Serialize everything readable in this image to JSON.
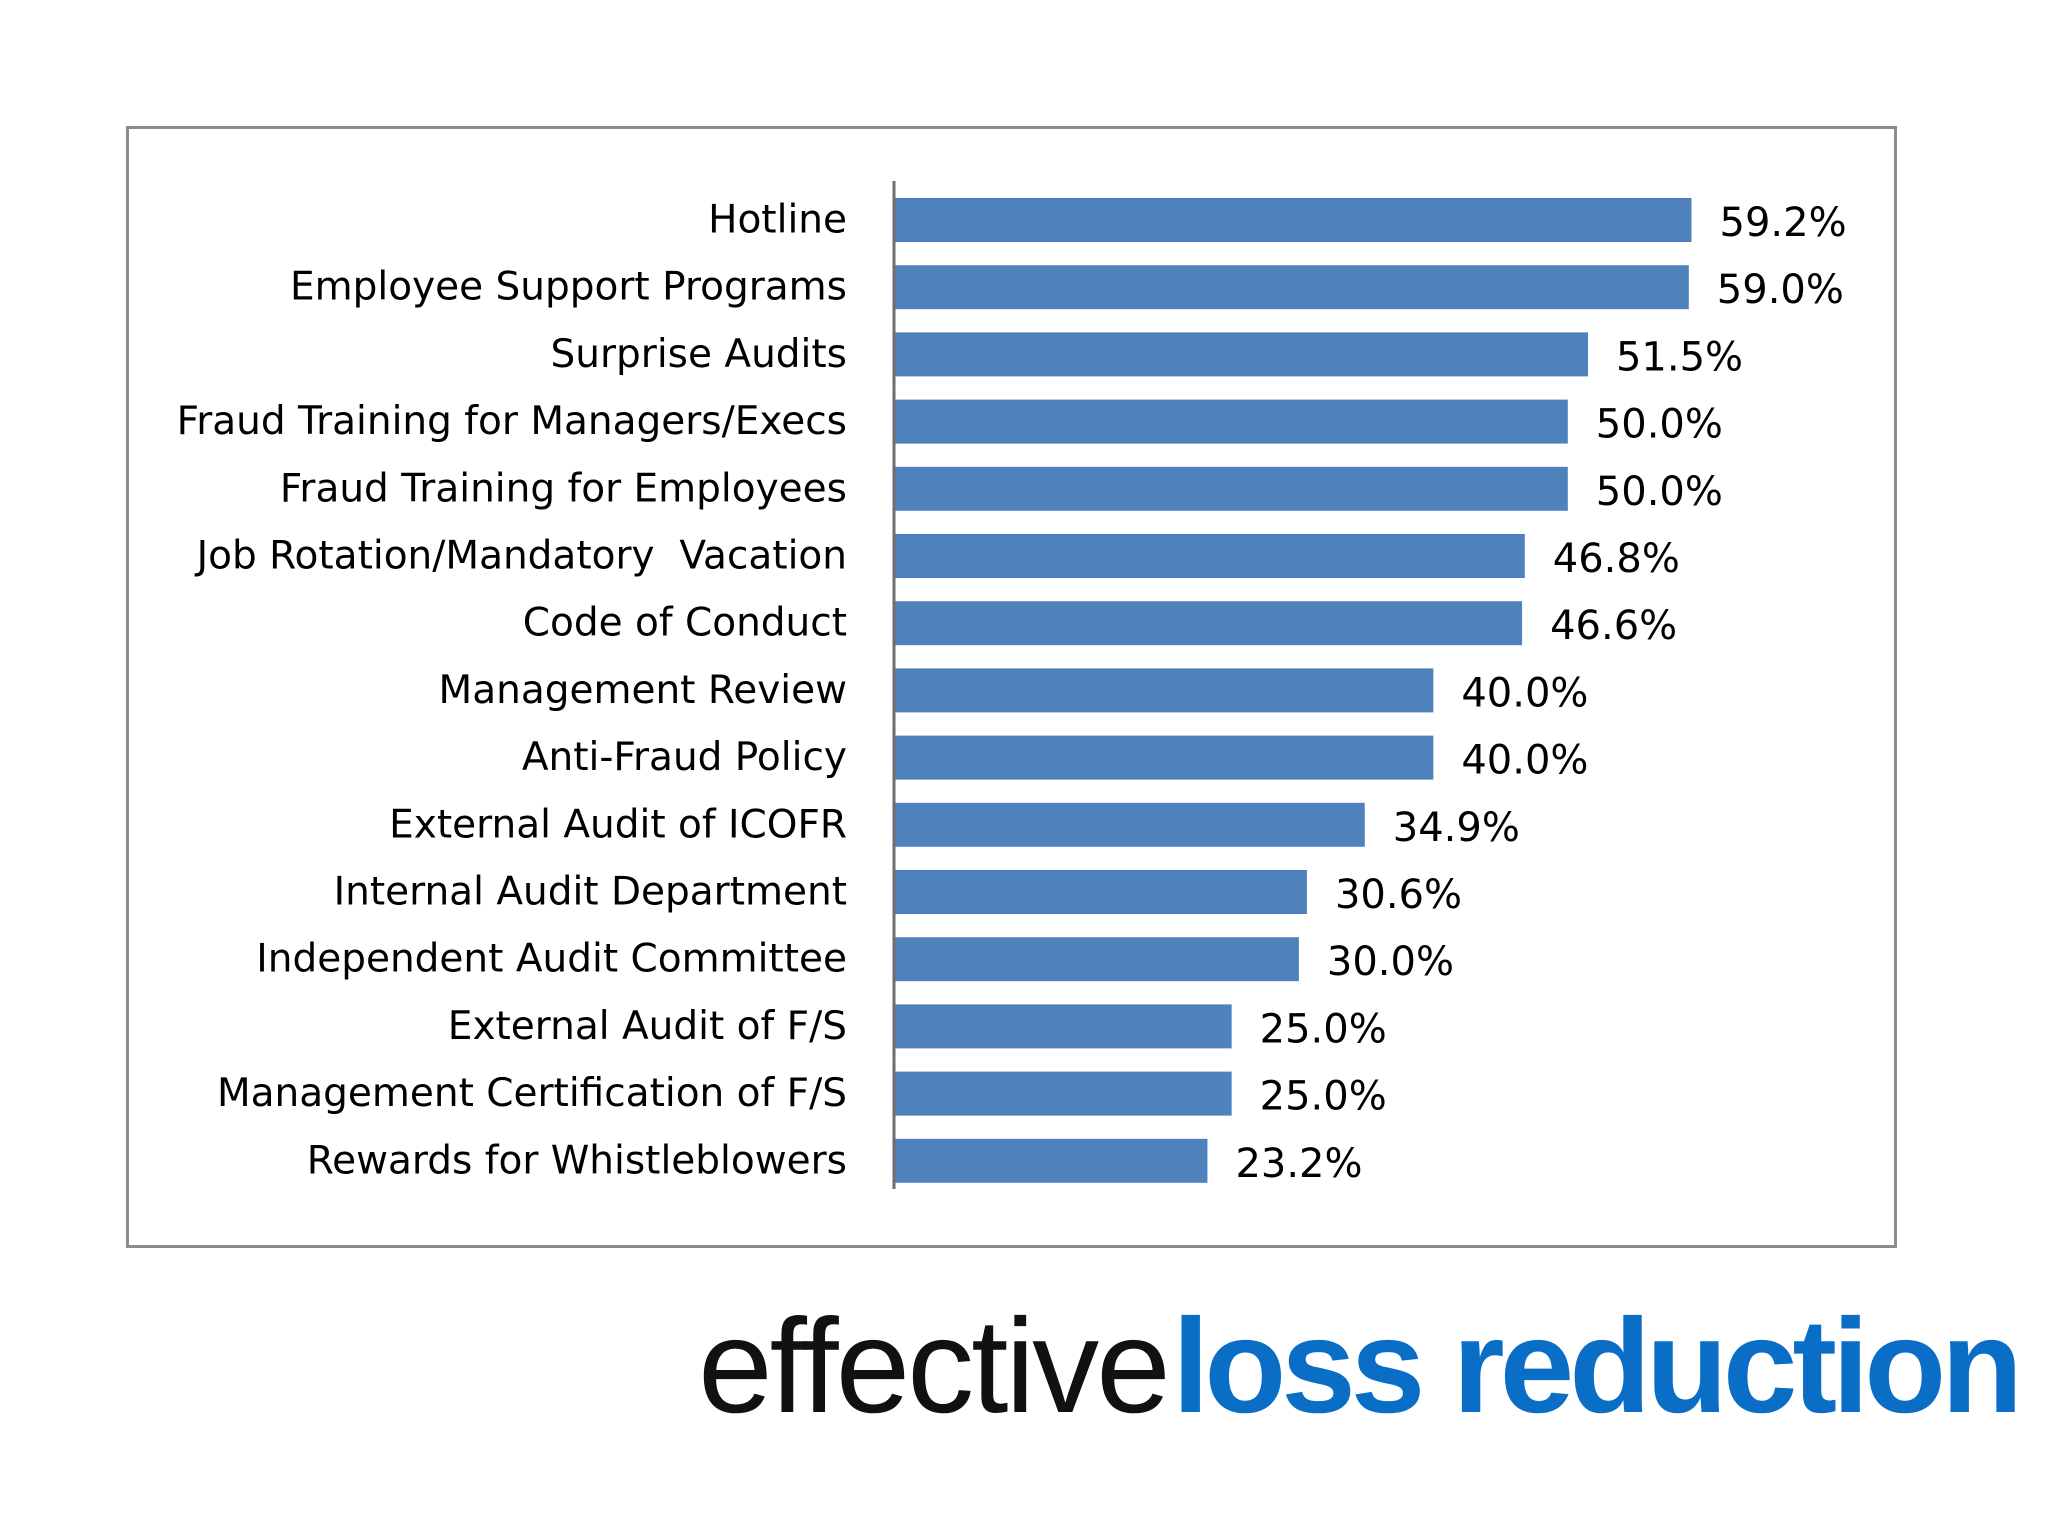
{
  "colors": {
    "bar": "#4f81bd",
    "frame": "#8c8c8c",
    "accent": "#0a6ec7"
  },
  "chart_data": {
    "type": "bar",
    "orientation": "horizontal",
    "categories": [
      "Hotline",
      "Employee Support Programs",
      "Surprise Audits",
      "Fraud Training for Managers/Execs",
      "Fraud Training for Employees",
      "Job Rotation/Mandatory  Vacation",
      "Code of Conduct",
      "Management Review",
      "Anti-Fraud Policy",
      "External Audit of ICOFR",
      "Internal Audit Department",
      "Independent Audit Committee",
      "External Audit of F/S",
      "Management Certification of F/S",
      "Rewards for Whistleblowers"
    ],
    "values": [
      59.2,
      59.0,
      51.5,
      50.0,
      50.0,
      46.8,
      46.6,
      40.0,
      40.0,
      34.9,
      30.6,
      30.0,
      25.0,
      25.0,
      23.2
    ],
    "data_labels": [
      "59.2%",
      "59.0%",
      "51.5%",
      "50.0%",
      "50.0%",
      "46.8%",
      "46.6%",
      "40.0%",
      "40.0%",
      "34.9%",
      "30.6%",
      "30.0%",
      "25.0%",
      "25.0%",
      "23.2%"
    ],
    "xlim": [
      0,
      59.2
    ],
    "grid": false,
    "legend": "none",
    "title": "",
    "xlabel": "",
    "ylabel": ""
  },
  "tagline": {
    "plain": "effective",
    "accent": "loss reduction"
  }
}
